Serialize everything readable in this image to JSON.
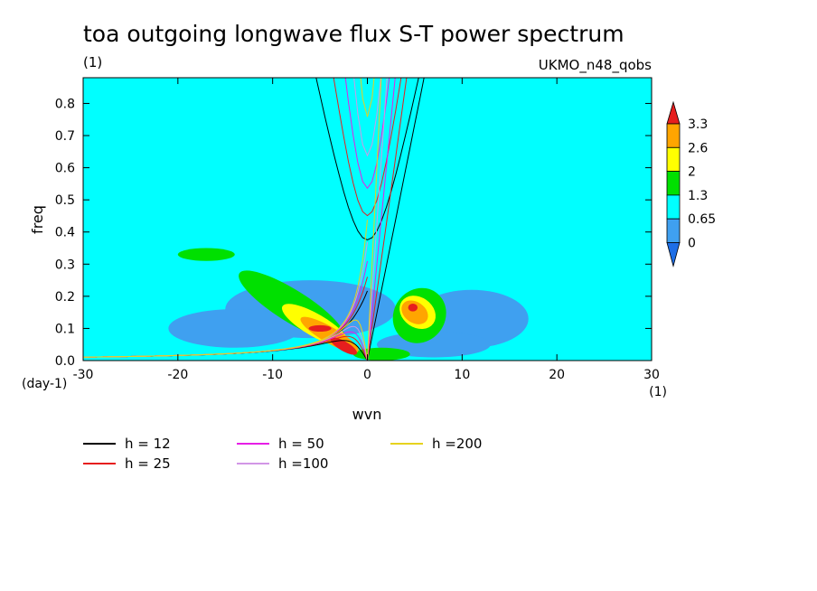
{
  "title": "toa outgoing longwave flux S-T power spectrum",
  "units_label": "(1)",
  "model_label": "UKMO_n48_qobs",
  "chart_data": {
    "type": "heatmap",
    "title": "toa outgoing longwave flux S-T power spectrum",
    "xlabel": "wvn",
    "ylabel": "freq",
    "x_unit_label": "(1)",
    "y_unit_label": "(day-1)",
    "xlim": [
      -30,
      30
    ],
    "ylim": [
      0,
      0.88
    ],
    "x_ticks": [
      -30,
      -20,
      -10,
      0,
      10,
      20,
      30
    ],
    "y_ticks": [
      0.0,
      0.1,
      0.2,
      0.3,
      0.4,
      0.5,
      0.6,
      0.7,
      0.8
    ],
    "x_tick_labels": [
      "-30",
      "-20",
      "-10",
      "0",
      "10",
      "20",
      "30"
    ],
    "y_tick_labels": [
      "0.0",
      "0.1",
      "0.2",
      "0.3",
      "0.4",
      "0.5",
      "0.6",
      "0.7",
      "0.8"
    ],
    "colorbar": {
      "levels": [
        0,
        0.65,
        1.3,
        2,
        2.6,
        3.3
      ],
      "labels": [
        "0",
        "0.65",
        "1.3",
        "2",
        "2.6",
        "3.3"
      ],
      "colors": [
        "#1e6ee6",
        "#3fa0f0",
        "#00ffff",
        "#00e000",
        "#ffff00",
        "#ffa500",
        "#e61e1e"
      ]
    },
    "background_color": "#00ffff",
    "regions": [
      {
        "level": "0-0.65",
        "color": "#3fa0f0",
        "shape": "ellipse",
        "cx": -6,
        "cy": 0.16,
        "rx": 9,
        "ry": 0.09
      },
      {
        "level": "0-0.65",
        "color": "#3fa0f0",
        "shape": "ellipse",
        "cx": -14,
        "cy": 0.1,
        "rx": 7,
        "ry": 0.06
      },
      {
        "level": "0-0.65",
        "color": "#3fa0f0",
        "shape": "ellipse",
        "cx": 11,
        "cy": 0.13,
        "rx": 6,
        "ry": 0.09
      },
      {
        "level": "0-0.65",
        "color": "#3fa0f0",
        "shape": "ellipse",
        "cx": 7,
        "cy": 0.05,
        "rx": 6,
        "ry": 0.04
      },
      {
        "level": "1.3-2",
        "color": "#00e000",
        "shape": "ellipse",
        "cx": -8,
        "cy": 0.17,
        "rx": 6.5,
        "ry": 0.05,
        "rotate": 32
      },
      {
        "level": "1.3-2",
        "color": "#00e000",
        "shape": "ellipse",
        "cx": 5.5,
        "cy": 0.14,
        "rx": 3,
        "ry": 0.08,
        "rotate": -55
      },
      {
        "level": "1.3-2",
        "color": "#00e000",
        "shape": "ellipse",
        "cx": 1.5,
        "cy": 0.02,
        "rx": 3,
        "ry": 0.02
      },
      {
        "level": "1.3-2",
        "color": "#00e000",
        "shape": "ellipse",
        "cx": -17,
        "cy": 0.33,
        "rx": 3,
        "ry": 0.02
      },
      {
        "level": "2-2.6",
        "color": "#ffff00",
        "shape": "ellipse",
        "cx": -5.5,
        "cy": 0.11,
        "rx": 4,
        "ry": 0.035,
        "rotate": 30
      },
      {
        "level": "2-2.6",
        "color": "#ffff00",
        "shape": "ellipse",
        "cx": 5.3,
        "cy": 0.15,
        "rx": 1.6,
        "ry": 0.06,
        "rotate": -55
      },
      {
        "level": "2.6-3.3",
        "color": "#ffa500",
        "shape": "ellipse",
        "cx": -4,
        "cy": 0.08,
        "rx": 3.5,
        "ry": 0.025,
        "rotate": 30
      },
      {
        "level": "2.6-3.3",
        "color": "#ffa500",
        "shape": "ellipse",
        "cx": 5,
        "cy": 0.15,
        "rx": 1.1,
        "ry": 0.045,
        "rotate": -55
      },
      {
        "level": ">3.3",
        "color": "#e61e1e",
        "shape": "ellipse",
        "cx": -2.5,
        "cy": 0.045,
        "rx": 1.6,
        "ry": 0.015,
        "rotate": 30
      },
      {
        "level": ">3.3",
        "color": "#e61e1e",
        "shape": "ellipse",
        "cx": -5,
        "cy": 0.1,
        "rx": 1.2,
        "ry": 0.01
      },
      {
        "level": ">3.3",
        "color": "#e61e1e",
        "shape": "ellipse",
        "cx": 4.8,
        "cy": 0.165,
        "rx": 0.5,
        "ry": 0.012
      }
    ],
    "series": [
      {
        "name": "h = 12",
        "equivalent_depth": 12,
        "color": "#000000"
      },
      {
        "name": "h = 25",
        "equivalent_depth": 25,
        "color": "#e61e1e"
      },
      {
        "name": "h = 50",
        "equivalent_depth": 50,
        "color": "#e61ee6"
      },
      {
        "name": "h =100",
        "equivalent_depth": 100,
        "color": "#d296e6"
      },
      {
        "name": "h =200",
        "equivalent_depth": 200,
        "color": "#e6d21e"
      }
    ],
    "legend_position": "bottom"
  }
}
